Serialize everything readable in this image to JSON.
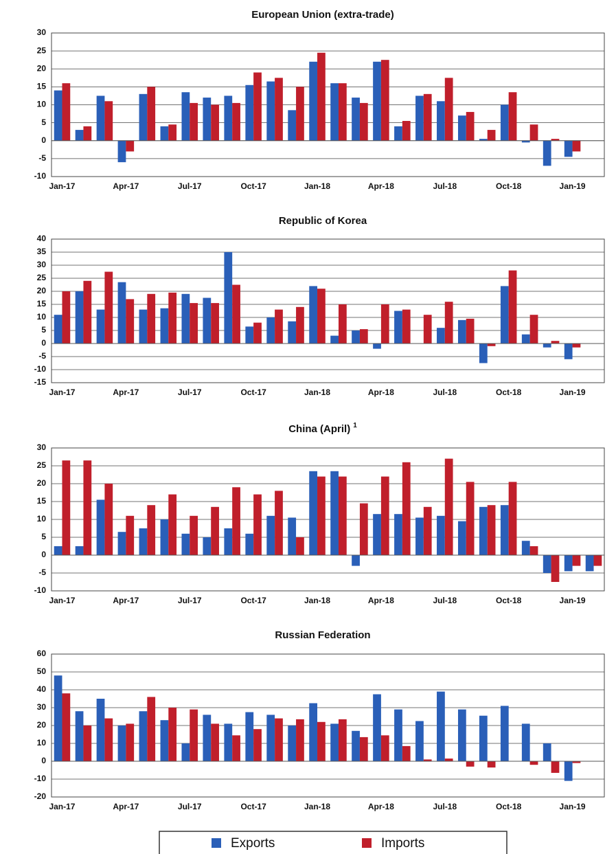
{
  "chart_data": [
    {
      "type": "bar",
      "title": "European Union (extra-trade)",
      "categories": [
        "Jan-17",
        null,
        null,
        "Apr-17",
        null,
        null,
        "Jul-17",
        null,
        null,
        "Oct-17",
        null,
        null,
        "Jan-18",
        null,
        null,
        "Apr-18",
        null,
        null,
        "Jul-18",
        null,
        null,
        "Oct-18",
        null,
        null,
        "Jan-19",
        null
      ],
      "series": [
        {
          "name": "Exports",
          "color": "#2a5fb8",
          "values": [
            14,
            3,
            12.5,
            -6,
            13,
            4,
            13.5,
            12,
            12.5,
            15.5,
            16.5,
            8.5,
            22,
            16,
            12,
            22,
            4,
            12.5,
            11,
            7,
            0.5,
            10,
            -0.5,
            -7,
            -4.5,
            null
          ]
        },
        {
          "name": "Imports",
          "color": "#c01f2b",
          "values": [
            16,
            4,
            11,
            -3,
            15,
            4.5,
            10.5,
            10,
            10.5,
            19,
            17.5,
            15,
            24.5,
            16,
            10.5,
            22.5,
            5.5,
            13,
            17.5,
            8,
            3,
            13.5,
            4.5,
            0.5,
            -3,
            null
          ]
        }
      ],
      "ylim": [
        -10,
        30
      ],
      "yticks": [
        -10,
        -5,
        0,
        5,
        10,
        15,
        20,
        25,
        30
      ],
      "grid": true
    },
    {
      "type": "bar",
      "title": "Republic of Korea",
      "categories": [
        "Jan-17",
        null,
        null,
        "Apr-17",
        null,
        null,
        "Jul-17",
        null,
        null,
        "Oct-17",
        null,
        null,
        "Jan-18",
        null,
        null,
        "Apr-18",
        null,
        null,
        "Jul-18",
        null,
        null,
        "Oct-18",
        null,
        null,
        "Jan-19",
        null
      ],
      "series": [
        {
          "name": "Exports",
          "color": "#2a5fb8",
          "values": [
            11,
            20,
            13,
            23.5,
            13,
            13.5,
            19,
            17.5,
            35,
            6.5,
            10,
            8.5,
            22,
            3,
            5,
            -2,
            12.5,
            0,
            6,
            9,
            -7.5,
            22,
            3.5,
            -1.5,
            -6,
            null
          ]
        },
        {
          "name": "Imports",
          "color": "#c01f2b",
          "values": [
            20,
            24,
            27.5,
            17,
            19,
            19.5,
            15.5,
            15.5,
            22.5,
            8,
            13,
            14,
            21,
            15,
            5.5,
            15,
            13,
            11,
            16,
            9.5,
            -1,
            28,
            11,
            1,
            -1.5,
            null
          ]
        }
      ],
      "ylim": [
        -15,
        40
      ],
      "yticks": [
        -15,
        -10,
        -5,
        0,
        5,
        10,
        15,
        20,
        25,
        30,
        35,
        40
      ],
      "grid": true
    },
    {
      "type": "bar",
      "title": "China (April)",
      "title_note": "1",
      "categories": [
        "Jan-17",
        null,
        null,
        "Apr-17",
        null,
        null,
        "Jul-17",
        null,
        null,
        "Oct-17",
        null,
        null,
        "Jan-18",
        null,
        null,
        "Apr-18",
        null,
        null,
        "Jul-18",
        null,
        null,
        "Oct-18",
        null,
        null,
        "Jan-19",
        null
      ],
      "series": [
        {
          "name": "Exports",
          "color": "#2a5fb8",
          "values": [
            2.5,
            2.5,
            15.5,
            6.5,
            7.5,
            10,
            6,
            5,
            7.5,
            6,
            11,
            10.5,
            23.5,
            23.5,
            -3,
            11.5,
            11.5,
            10.5,
            11,
            9.5,
            13.5,
            14,
            4,
            -5,
            -4.5,
            -4.5
          ]
        },
        {
          "name": "Imports",
          "color": "#c01f2b",
          "values": [
            26.5,
            26.5,
            20,
            11,
            14,
            17,
            11,
            13.5,
            19,
            17,
            18,
            5,
            22,
            22,
            14.5,
            22,
            26,
            13.5,
            27,
            20.5,
            14,
            20.5,
            2.5,
            -7.5,
            -3,
            -3
          ]
        }
      ],
      "ylim": [
        -10,
        30
      ],
      "yticks": [
        -10,
        -5,
        0,
        5,
        10,
        15,
        20,
        25,
        30
      ],
      "grid": true
    },
    {
      "type": "bar",
      "title": "Russian Federation",
      "categories": [
        "Jan-17",
        null,
        null,
        "Apr-17",
        null,
        null,
        "Jul-17",
        null,
        null,
        "Oct-17",
        null,
        null,
        "Jan-18",
        null,
        null,
        "Apr-18",
        null,
        null,
        "Jul-18",
        null,
        null,
        "Oct-18",
        null,
        null,
        "Jan-19",
        null
      ],
      "series": [
        {
          "name": "Exports",
          "color": "#2a5fb8",
          "values": [
            48,
            28,
            35,
            20,
            28,
            23,
            10,
            26,
            21,
            27.5,
            26,
            20,
            32.5,
            21,
            17,
            37.5,
            29,
            22.5,
            39,
            29,
            25.5,
            31,
            21,
            10,
            -11,
            null
          ]
        },
        {
          "name": "Imports",
          "color": "#c01f2b",
          "values": [
            38,
            20,
            24,
            21,
            36,
            30,
            29,
            21,
            14.5,
            18,
            24,
            23.5,
            22,
            23.5,
            13.5,
            14.5,
            8.5,
            1,
            1.5,
            -3,
            -3.5,
            0,
            -2,
            -6.5,
            -1,
            null
          ]
        }
      ],
      "ylim": [
        -20,
        60
      ],
      "yticks": [
        -20,
        -10,
        0,
        10,
        20,
        30,
        40,
        50,
        60
      ],
      "grid": true
    }
  ]
}
